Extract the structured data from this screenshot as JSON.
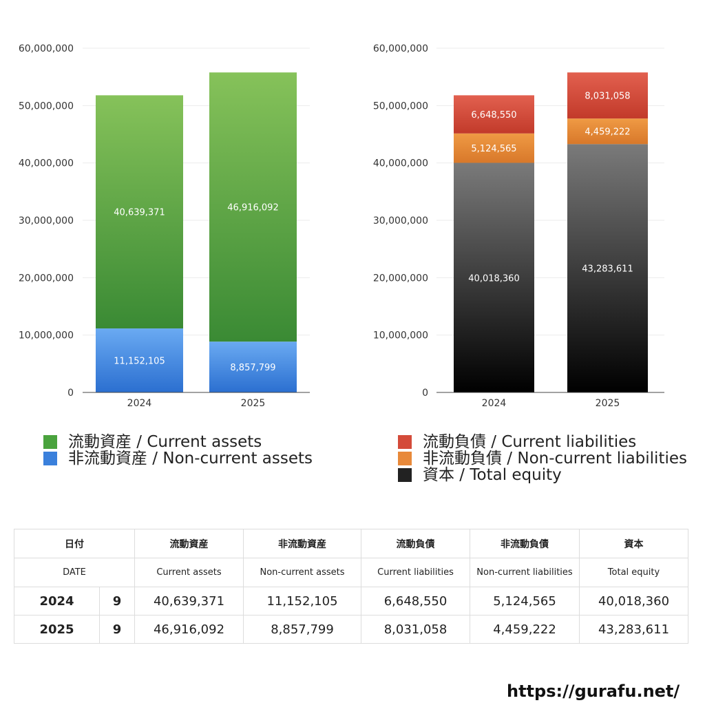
{
  "chart_data": [
    {
      "type": "bar",
      "stacked": true,
      "categories": [
        "2024",
        "2025"
      ],
      "ylim": [
        0,
        60000000
      ],
      "yticks": [
        "0",
        "10,000,000",
        "20,000,000",
        "30,000,000",
        "40,000,000",
        "50,000,000",
        "60,000,000"
      ],
      "ytick_values": [
        0,
        10000000,
        20000000,
        30000000,
        40000000,
        50000000,
        60000000
      ],
      "grid": true,
      "series": [
        {
          "name": "非流動資産 / Non-current assets",
          "values": [
            11152105,
            8857799
          ],
          "labels": [
            "11,152,105",
            "8,857,799"
          ],
          "color_top": "#6aaaf2",
          "color_bottom": "#2b6fd0"
        },
        {
          "name": "流動資産 / Current assets",
          "values": [
            40639371,
            46916092
          ],
          "labels": [
            "40,639,371",
            "46,916,092"
          ],
          "color_top": "#86c25a",
          "color_bottom": "#3a8a34"
        }
      ],
      "legend": [
        {
          "label": "流動資産 / Current assets",
          "color": "#4aa33e"
        },
        {
          "label": "非流動資産 / Non-current assets",
          "color": "#3a80dc"
        }
      ]
    },
    {
      "type": "bar",
      "stacked": true,
      "categories": [
        "2024",
        "2025"
      ],
      "ylim": [
        0,
        60000000
      ],
      "yticks": [
        "0",
        "10,000,000",
        "20,000,000",
        "30,000,000",
        "40,000,000",
        "50,000,000",
        "60,000,000"
      ],
      "ytick_values": [
        0,
        10000000,
        20000000,
        30000000,
        40000000,
        50000000,
        60000000
      ],
      "grid": true,
      "series": [
        {
          "name": "資本 / Total equity",
          "values": [
            40018360,
            43283611
          ],
          "labels": [
            "40,018,360",
            "43,283,611"
          ],
          "color_top": "#7a7a7a",
          "color_bottom": "#000000"
        },
        {
          "name": "非流動負債 / Non-current liabilities",
          "values": [
            5124565,
            4459222
          ],
          "labels": [
            "5,124,565",
            "4,459,222"
          ],
          "color_top": "#ef9a44",
          "color_bottom": "#d8782a"
        },
        {
          "name": "流動負債 / Current liabilities",
          "values": [
            6648550,
            8031058
          ],
          "labels": [
            "6,648,550",
            "8,031,058"
          ],
          "color_top": "#e2604f",
          "color_bottom": "#c23a2a"
        }
      ],
      "legend": [
        {
          "label": "流動負債 / Current liabilities",
          "color": "#d44b3a"
        },
        {
          "label": "非流動負債 / Non-current liabilities",
          "color": "#e8893a"
        },
        {
          "label": "資本 / Total equity",
          "color": "#222222"
        }
      ]
    }
  ],
  "table": {
    "header_jp": [
      "日付",
      "流動資産",
      "非流動資産",
      "流動負債",
      "非流動負債",
      "資本"
    ],
    "header_en": [
      "DATE",
      "Current assets",
      "Non-current assets",
      "Current liabilities",
      "Non-current liabilities",
      "Total equity"
    ],
    "rows": [
      {
        "year": "2024",
        "month": "9",
        "values": [
          "40,639,371",
          "11,152,105",
          "6,648,550",
          "5,124,565",
          "40,018,360"
        ]
      },
      {
        "year": "2025",
        "month": "9",
        "values": [
          "46,916,092",
          "8,857,799",
          "8,031,058",
          "4,459,222",
          "43,283,611"
        ]
      }
    ]
  },
  "site": "https://gurafu.net/"
}
